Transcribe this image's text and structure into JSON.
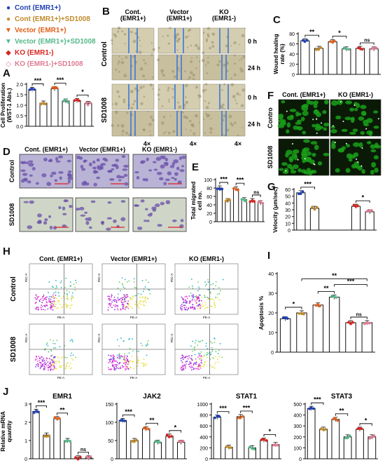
{
  "legend": [
    {
      "label": "Cont (EMR1+)",
      "symbol": "●",
      "color": "#1f3fb4"
    },
    {
      "label": "Cont (EMR1+)+SD1008",
      "symbol": "●",
      "color": "#c08a2a"
    },
    {
      "label": "Vector (EMR1+)",
      "symbol": "▼",
      "color": "#e0601a"
    },
    {
      "label": "Vector (EMR1+)+SD1008",
      "symbol": "▼",
      "color": "#55b88a"
    },
    {
      "label": "KO (EMR1-)",
      "symbol": "◆",
      "color": "#d8231e"
    },
    {
      "label": "KO (EMR1-)+SD1008",
      "symbol": "◇",
      "color": "#e07a92"
    }
  ],
  "panel_letters": {
    "A": "A",
    "B": "B",
    "C": "C",
    "D": "D",
    "E": "E",
    "F": "F",
    "G": "G",
    "H": "H",
    "I": "I",
    "J": "J"
  },
  "wound": {
    "col_titles": [
      "Cont.\n(EMR1+)",
      "Vector\n(EMR1+)",
      "KO\n(EMR1-)"
    ],
    "row_groups": [
      "Control",
      "SD1008"
    ],
    "time_labels": [
      "0 h",
      "24 h",
      "0 h",
      "24 h"
    ],
    "mag_labels": [
      "4×",
      "4×",
      "4×"
    ]
  },
  "transwell": {
    "col_titles": [
      "Cont. (EMR1+)",
      "Vector (EMR1+)",
      "KO (EMR1-)"
    ],
    "row_labels": [
      "Control",
      "SD1008"
    ]
  },
  "fluor": {
    "col_titles": [
      "Cont. (EMR1+)",
      "KO (EMR1-)"
    ],
    "row_labels": [
      "Contro",
      "SD1008"
    ]
  },
  "flow": {
    "col_titles": [
      "Cont. (EMR1+)",
      "Vector (EMR1+)",
      "KO (EMR1-)"
    ],
    "row_labels": [
      "Control",
      "SD1008"
    ],
    "x_axis": "PE-A",
    "y_axis": "FitC-A"
  },
  "colors": {
    "bar_edge": "#111111",
    "green": "#1aa01a",
    "purple": "#6a4fa8",
    "scratch": "#3a78d8"
  },
  "chart_data": [
    {
      "id": "A",
      "type": "bar",
      "ylabel": "Cell Proliferation\n(WST-1 Abs.)",
      "ylim": [
        0,
        2.0
      ],
      "yticks": [
        "0.0",
        "0.5",
        "1.0",
        "1.5",
        "2.0"
      ],
      "tick_values": [
        0,
        0.5,
        1.0,
        1.5,
        2.0
      ],
      "values": [
        1.75,
        1.1,
        1.78,
        1.2,
        1.22,
        1.08
      ],
      "significance": [
        {
          "from": 0,
          "to": 1,
          "label": "***"
        },
        {
          "from": 2,
          "to": 3,
          "label": "***"
        },
        {
          "from": 4,
          "to": 5,
          "label": "*"
        }
      ]
    },
    {
      "id": "C",
      "type": "bar",
      "ylabel": "Wound healing\nrate (%)",
      "ylim": [
        0,
        80
      ],
      "yticks": [
        "0",
        "20",
        "40",
        "60",
        "80"
      ],
      "tick_values": [
        0,
        20,
        40,
        60,
        80
      ],
      "values": [
        66,
        51,
        64,
        50,
        51,
        50
      ],
      "significance": [
        {
          "from": 0,
          "to": 1,
          "label": "**"
        },
        {
          "from": 2,
          "to": 3,
          "label": "*"
        },
        {
          "from": 4,
          "to": 5,
          "label": "ns"
        }
      ]
    },
    {
      "id": "E",
      "type": "bar",
      "ylabel": "Total migrated\ncell no.",
      "ylim": [
        0,
        100
      ],
      "yticks": [
        "0",
        "20",
        "40",
        "60",
        "80",
        "100"
      ],
      "tick_values": [
        0,
        20,
        40,
        60,
        80,
        100
      ],
      "values": [
        80,
        50,
        78,
        52,
        50,
        45
      ],
      "significance": [
        {
          "from": 0,
          "to": 1,
          "label": "***"
        },
        {
          "from": 2,
          "to": 3,
          "label": "***"
        },
        {
          "from": 4,
          "to": 5,
          "label": "ns"
        }
      ]
    },
    {
      "id": "G",
      "type": "bar",
      "ylabel": "Velocity (μm/sec)",
      "ylim": [
        0,
        60
      ],
      "yticks": [
        "0",
        "10",
        "20",
        "30",
        "40",
        "50",
        "60"
      ],
      "tick_values": [
        0,
        10,
        20,
        30,
        40,
        50,
        60
      ],
      "values": [
        55,
        32,
        0,
        0,
        35,
        27
      ],
      "significance": [
        {
          "from": 0,
          "to": 1,
          "label": "***"
        },
        {
          "from": 4,
          "to": 5,
          "label": "*"
        }
      ]
    },
    {
      "id": "I",
      "type": "bar",
      "ylabel": "Apoptosis %",
      "ylim": [
        0,
        40
      ],
      "yticks": [
        "0",
        "10",
        "20",
        "30",
        "40"
      ],
      "tick_values": [
        0,
        10,
        20,
        30,
        40
      ],
      "values": [
        17,
        20,
        24,
        28,
        15,
        15
      ],
      "significance": [
        {
          "from": 0,
          "to": 1,
          "label": "*"
        },
        {
          "from": 2,
          "to": 3,
          "label": "**"
        },
        {
          "from": 3,
          "to": 5,
          "label": "***"
        },
        {
          "from": 1,
          "to": 5,
          "label": "**"
        },
        {
          "from": 4,
          "to": 5,
          "label": "ns"
        }
      ]
    },
    {
      "id": "J1",
      "type": "bar",
      "title": "EMR1",
      "ylabel": "Relative mRNA\nquantity",
      "ylim": [
        0,
        3
      ],
      "yticks": [
        "0",
        "1",
        "2",
        "3"
      ],
      "tick_values": [
        0,
        1,
        2,
        3
      ],
      "values": [
        2.6,
        1.3,
        2.2,
        1.0,
        0.05,
        0.05
      ],
      "significance": [
        {
          "from": 0,
          "to": 1,
          "label": "***"
        },
        {
          "from": 2,
          "to": 3,
          "label": "**"
        },
        {
          "from": 4,
          "to": 5,
          "label": "ns"
        }
      ]
    },
    {
      "id": "J2",
      "type": "bar",
      "title": "JAK2",
      "ylim": [
        0,
        150
      ],
      "yticks": [
        "0",
        "50",
        "100",
        "150"
      ],
      "tick_values": [
        0,
        50,
        100,
        150
      ],
      "values": [
        105,
        50,
        82,
        45,
        62,
        45
      ],
      "significance": [
        {
          "from": 0,
          "to": 1,
          "label": "***"
        },
        {
          "from": 2,
          "to": 3,
          "label": "**"
        },
        {
          "from": 4,
          "to": 5,
          "label": "*"
        }
      ]
    },
    {
      "id": "J3",
      "type": "bar",
      "title": "STAT1",
      "ylim": [
        0,
        1000
      ],
      "yticks": [
        "0",
        "200",
        "400",
        "600",
        "800",
        "1000"
      ],
      "tick_values": [
        0,
        200,
        400,
        600,
        800,
        1000
      ],
      "values": [
        760,
        210,
        770,
        200,
        340,
        260
      ],
      "significance": [
        {
          "from": 0,
          "to": 1,
          "label": "***"
        },
        {
          "from": 2,
          "to": 3,
          "label": "***"
        },
        {
          "from": 4,
          "to": 5,
          "label": "*"
        }
      ]
    },
    {
      "id": "J4",
      "type": "bar",
      "title": "STAT3",
      "ylim": [
        0,
        500
      ],
      "yticks": [
        "0",
        "100",
        "200",
        "300",
        "400",
        "500"
      ],
      "tick_values": [
        0,
        100,
        200,
        300,
        400,
        500
      ],
      "values": [
        460,
        270,
        360,
        200,
        270,
        200
      ],
      "significance": [
        {
          "from": 0,
          "to": 1,
          "label": "***"
        },
        {
          "from": 2,
          "to": 3,
          "label": "**"
        },
        {
          "from": 4,
          "to": 5,
          "label": "*"
        }
      ]
    }
  ]
}
